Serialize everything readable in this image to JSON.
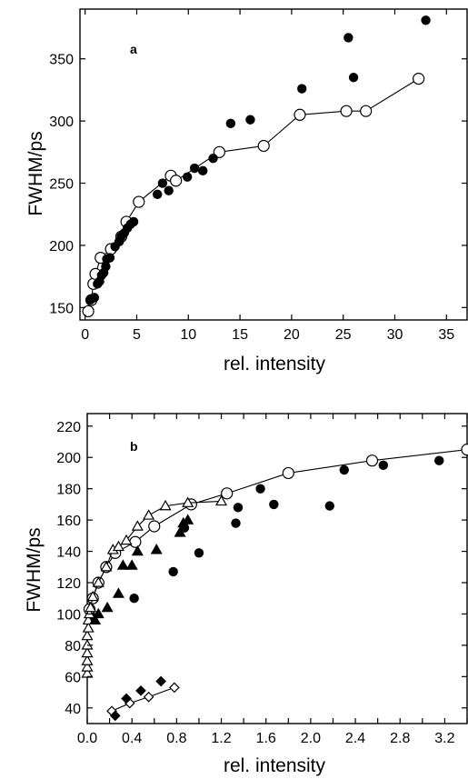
{
  "chart_data": [
    {
      "type": "scatter",
      "panel_label": "a",
      "xlabel": "rel. intensity",
      "ylabel": "FWHM/ps",
      "xlim": [
        -0.5,
        37
      ],
      "ylim": [
        140,
        390
      ],
      "xticks": [
        0,
        5,
        10,
        15,
        20,
        25,
        30,
        35
      ],
      "xtick_labels": [
        "0",
        "5",
        "10",
        "15",
        "20",
        "25",
        "30",
        "35"
      ],
      "yticks": [
        150,
        200,
        250,
        300,
        350
      ],
      "ytick_labels": [
        "150",
        "200",
        "250",
        "300",
        "350"
      ],
      "grid": false,
      "series": [
        {
          "marker": "open-circle",
          "connected": true,
          "points": [
            [
              0.3,
              147
            ],
            [
              0.6,
              156
            ],
            [
              0.8,
              169
            ],
            [
              1.0,
              177
            ],
            [
              1.5,
              190
            ],
            [
              2.5,
              197
            ],
            [
              3.5,
              207
            ],
            [
              4.0,
              219
            ],
            [
              5.2,
              235
            ],
            [
              8.3,
              256
            ],
            [
              8.8,
              252
            ],
            [
              13.0,
              275
            ],
            [
              17.3,
              280
            ],
            [
              20.8,
              305
            ],
            [
              25.3,
              308
            ],
            [
              27.2,
              308
            ],
            [
              32.3,
              334
            ]
          ]
        },
        {
          "marker": "filled-circle",
          "connected": false,
          "points": [
            [
              0.5,
              156
            ],
            [
              0.9,
              158
            ],
            [
              1.2,
              169
            ],
            [
              1.4,
              171
            ],
            [
              1.6,
              176
            ],
            [
              1.8,
              178
            ],
            [
              2.0,
              183
            ],
            [
              2.1,
              189
            ],
            [
              2.4,
              190
            ],
            [
              2.9,
              199
            ],
            [
              3.3,
              203
            ],
            [
              3.5,
              207
            ],
            [
              3.8,
              210
            ],
            [
              4.1,
              214
            ],
            [
              4.4,
              217
            ],
            [
              4.7,
              219
            ],
            [
              7.0,
              241
            ],
            [
              7.5,
              250
            ],
            [
              8.1,
              244
            ],
            [
              9.9,
              255
            ],
            [
              10.6,
              262
            ],
            [
              11.4,
              260
            ],
            [
              12.4,
              270
            ],
            [
              14.1,
              298
            ],
            [
              16.0,
              301
            ],
            [
              21.0,
              326
            ],
            [
              25.5,
              367
            ],
            [
              26.0,
              335
            ],
            [
              33.0,
              381
            ]
          ]
        }
      ]
    },
    {
      "type": "scatter",
      "panel_label": "b",
      "xlabel": "rel. intensity",
      "ylabel": "FWHM/ps",
      "xlim": [
        0,
        3.4
      ],
      "ylim": [
        30,
        228
      ],
      "xticks": [
        0,
        0.2,
        0.4,
        0.6,
        0.8,
        1.0,
        1.2,
        1.4,
        1.6,
        1.8,
        2.0,
        2.2,
        2.4,
        2.6,
        2.8,
        3.0,
        3.2,
        3.4
      ],
      "xtick_labels": [
        "0.0",
        "",
        "0.4",
        "",
        "0.8",
        "",
        "1.2",
        "",
        "1.6",
        "",
        "2.0",
        "",
        "2.4",
        "",
        "2.8",
        "",
        "3.2",
        ""
      ],
      "yticks": [
        40,
        60,
        80,
        100,
        120,
        140,
        160,
        180,
        200,
        220
      ],
      "ytick_labels": [
        "40",
        "60",
        "80",
        "100",
        "120",
        "140",
        "160",
        "180",
        "200",
        "220"
      ],
      "grid": false,
      "series": [
        {
          "marker": "open-circle",
          "connected": true,
          "points": [
            [
              0.02,
              103
            ],
            [
              0.05,
              110
            ],
            [
              0.1,
              120
            ],
            [
              0.17,
              130
            ],
            [
              0.25,
              139
            ],
            [
              0.43,
              146
            ],
            [
              0.6,
              156
            ],
            [
              0.93,
              170
            ],
            [
              1.25,
              177
            ],
            [
              1.8,
              190
            ],
            [
              2.55,
              198
            ],
            [
              3.4,
              205
            ]
          ]
        },
        {
          "marker": "filled-circle",
          "connected": false,
          "points": [
            [
              0.05,
              98
            ],
            [
              0.42,
              110
            ],
            [
              0.77,
              127
            ],
            [
              0.87,
              155
            ],
            [
              1.0,
              139
            ],
            [
              1.35,
              168
            ],
            [
              1.33,
              158
            ],
            [
              1.55,
              180
            ],
            [
              1.67,
              170
            ],
            [
              2.17,
              169
            ],
            [
              2.3,
              192
            ],
            [
              2.65,
              195
            ],
            [
              3.15,
              198
            ]
          ]
        },
        {
          "marker": "open-triangle",
          "connected": true,
          "points": [
            [
              0.0,
              62
            ],
            [
              0.0,
              66
            ],
            [
              0.0,
              70
            ],
            [
              0.0,
              75
            ],
            [
              0.0,
              80
            ],
            [
              0.0,
              86
            ],
            [
              0.01,
              91
            ],
            [
              0.01,
              96
            ],
            [
              0.02,
              100
            ],
            [
              0.03,
              104
            ],
            [
              0.05,
              111
            ],
            [
              0.1,
              120
            ],
            [
              0.17,
              130
            ],
            [
              0.23,
              141
            ],
            [
              0.28,
              143
            ],
            [
              0.35,
              147
            ],
            [
              0.45,
              156
            ],
            [
              0.55,
              163
            ],
            [
              0.7,
              169
            ],
            [
              0.9,
              171
            ],
            [
              1.2,
              172
            ]
          ]
        },
        {
          "marker": "filled-triangle",
          "connected": false,
          "points": [
            [
              0.07,
              96
            ],
            [
              0.1,
              100
            ],
            [
              0.18,
              104
            ],
            [
              0.28,
              113
            ],
            [
              0.32,
              131
            ],
            [
              0.4,
              131
            ],
            [
              0.45,
              140
            ],
            [
              0.62,
              141
            ],
            [
              0.83,
              152
            ],
            [
              0.86,
              158
            ],
            [
              0.9,
              160
            ]
          ]
        },
        {
          "marker": "open-diamond",
          "connected": true,
          "points": [
            [
              0.22,
              38
            ],
            [
              0.38,
              43
            ],
            [
              0.55,
              47
            ],
            [
              0.78,
              53
            ]
          ]
        },
        {
          "marker": "filled-diamond",
          "connected": false,
          "points": [
            [
              0.25,
              35
            ],
            [
              0.35,
              46
            ],
            [
              0.48,
              51
            ],
            [
              0.66,
              57
            ]
          ]
        }
      ]
    }
  ]
}
